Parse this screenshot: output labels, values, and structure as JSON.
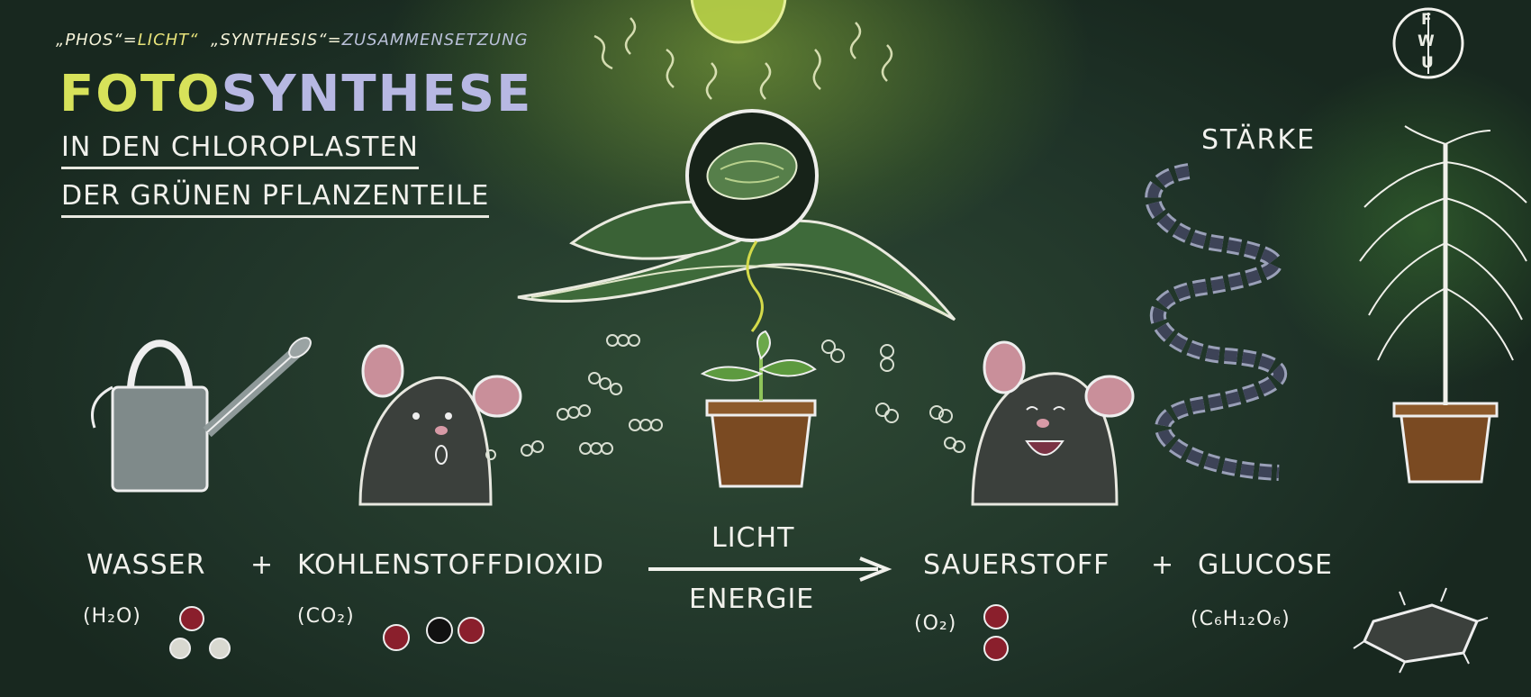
{
  "header": {
    "etym_phos": "„PHOS“",
    "etym_eq1": "=",
    "etym_licht": "LICHT“",
    "etym_synthesis": "„SYNTHESIS“",
    "etym_eq2": "=",
    "etym_zusammen": "ZUSAMMENSETZUNG",
    "title_part1": "FOTO",
    "title_part2": "SYNTHESE",
    "subtitle_line1": "IN DEN CHLOROPLASTEN",
    "subtitle_line2": "DER GRÜNEN PFLANZENTEILE"
  },
  "logo": {
    "letters": [
      "F",
      "W",
      "U"
    ]
  },
  "labels": {
    "starke": "STÄRKE"
  },
  "equation": {
    "reactant1": "WASSER",
    "plus1": "+",
    "reactant2": "KOHLENSTOFFDIOXID",
    "arrow_top": "LICHT",
    "arrow_bottom": "ENERGIE",
    "product1": "SAUERSTOFF",
    "plus2": "+",
    "product2": "GLUCOSE"
  },
  "formulas": {
    "water": "(H₂O)",
    "co2": "(CO₂)",
    "oxygen": "(O₂)",
    "glucose": "(C₆H₁₂O₆)"
  },
  "colors": {
    "board": "#1f3328",
    "chalk_white": "#f1f1ec",
    "chalk_yellow": "#d7e25a",
    "chalk_lavender": "#b7b8e3",
    "molecule_red": "#8a1f2c",
    "molecule_black": "#111111",
    "pot_brown": "#7a4a22"
  },
  "icons": [
    "watering-can-icon",
    "sun-icon",
    "leaf-icon",
    "chloroplast-icon",
    "seedling-icon",
    "mouse-icon",
    "starch-chain-icon",
    "tree-icon",
    "molecule-icon"
  ]
}
